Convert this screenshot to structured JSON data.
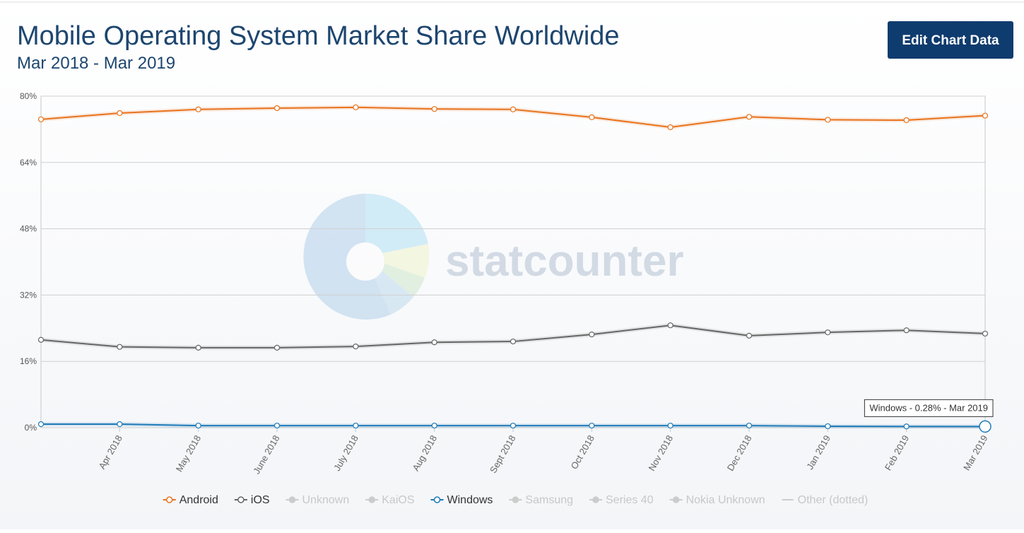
{
  "header": {
    "title": "Mobile Operating System Market Share Worldwide",
    "subtitle": "Mar 2018 - Mar 2019",
    "button": "Edit Chart Data"
  },
  "watermark": "statcounter",
  "chart_data": {
    "type": "line",
    "categories": [
      null,
      "Apr 2018",
      "May 2018",
      "June 2018",
      "July 2018",
      "Aug 2018",
      "Sept 2018",
      "Oct 2018",
      "Nov 2018",
      "Dec 2018",
      "Jan 2019",
      "Feb 2019",
      "Mar 2019"
    ],
    "ylim": [
      0,
      80
    ],
    "yticks": [
      {
        "value": 0,
        "label": "0%"
      },
      {
        "value": 16,
        "label": "16%"
      },
      {
        "value": 32,
        "label": "32%"
      },
      {
        "value": 48,
        "label": "48%"
      },
      {
        "value": 64,
        "label": "64%"
      },
      {
        "value": 80,
        "label": "80%"
      }
    ],
    "grid": true,
    "legend": "bottom",
    "series": [
      {
        "name": "Android",
        "color": "#e8731e",
        "values": [
          74.4,
          75.9,
          76.8,
          77.1,
          77.3,
          76.9,
          76.8,
          74.9,
          72.5,
          75.0,
          74.3,
          74.2,
          75.3
        ]
      },
      {
        "name": "iOS",
        "color": "#666666",
        "values": [
          21.2,
          19.5,
          19.3,
          19.3,
          19.6,
          20.6,
          20.8,
          22.5,
          24.7,
          22.2,
          23.0,
          23.5,
          22.7
        ]
      },
      {
        "name": "Unknown",
        "color": "#cccccc",
        "visible": false
      },
      {
        "name": "KaiOS",
        "color": "#cccccc",
        "visible": false
      },
      {
        "name": "Windows",
        "color": "#1f7ab8",
        "values": [
          0.85,
          0.85,
          0.5,
          0.5,
          0.5,
          0.5,
          0.5,
          0.5,
          0.5,
          0.5,
          0.35,
          0.3,
          0.28
        ]
      },
      {
        "name": "Samsung",
        "color": "#cccccc",
        "visible": false
      },
      {
        "name": "Series 40",
        "color": "#cccccc",
        "visible": false
      },
      {
        "name": "Nokia Unknown",
        "color": "#cccccc",
        "visible": false
      },
      {
        "name": "Other (dotted)",
        "color": "#cccccc",
        "visible": false,
        "marker": "line"
      }
    ],
    "tooltip": "Windows - 0.28% - Mar 2019"
  }
}
